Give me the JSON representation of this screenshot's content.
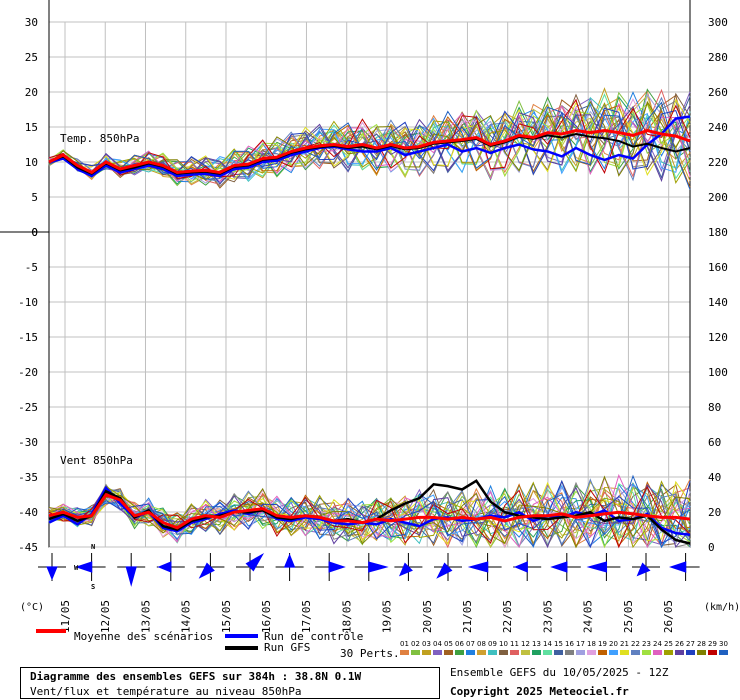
{
  "chart_data": {
    "type": "line",
    "days": [
      "11/05",
      "12/05",
      "13/05",
      "14/05",
      "15/05",
      "16/05",
      "17/05",
      "18/05",
      "19/05",
      "20/05",
      "21/05",
      "22/05",
      "23/05",
      "24/05",
      "25/05",
      "26/05"
    ],
    "left_unit": "(°C)",
    "right_unit": "(km/h)",
    "temp_panel": {
      "label": "Temp. 850hPa",
      "left_ticks": [
        "30",
        "25",
        "20",
        "15",
        "10",
        "5",
        "0"
      ],
      "right_ticks": [
        "300",
        "280",
        "260",
        "240",
        "220",
        "200"
      ],
      "ylim": [
        0,
        30
      ],
      "mean": [
        10,
        11,
        9.5,
        8.5,
        10,
        9,
        9.5,
        10,
        9.5,
        8.5,
        8.7,
        8.8,
        8.5,
        9.5,
        9.7,
        10.5,
        10.7,
        11.5,
        12,
        12.3,
        12.5,
        12.2,
        12.5,
        12,
        12.5,
        12,
        12.2,
        12.8,
        13,
        13.2,
        13.5,
        12.5,
        13,
        13.8,
        13.5,
        14.2,
        14,
        14.5,
        14.2,
        14.5,
        14.2,
        13.8,
        14.5,
        14,
        13.7,
        13
      ],
      "control": [
        10,
        10.5,
        9,
        8,
        9.5,
        8.5,
        9,
        9.5,
        9,
        8,
        8.2,
        8.3,
        8,
        9,
        9.2,
        10,
        10.2,
        11,
        11.5,
        12,
        12.2,
        11.8,
        11.5,
        11.5,
        12,
        11,
        11.5,
        12,
        12.5,
        11.5,
        12,
        11.3,
        12,
        12.5,
        11.8,
        11.5,
        10.8,
        12,
        11,
        10.3,
        11,
        10.5,
        12.5,
        14,
        16.2,
        16.5
      ],
      "gfs": [
        10,
        10.8,
        9.2,
        8.3,
        9.8,
        8.8,
        9.2,
        9.8,
        9.3,
        8.3,
        8.5,
        8.6,
        8.3,
        9.3,
        9.5,
        10.3,
        10.5,
        11.3,
        11.8,
        12.1,
        12.3,
        12,
        12.2,
        11.8,
        12.3,
        11.8,
        12,
        12.6,
        12.8,
        13,
        13.3,
        12.3,
        12.8,
        13.6,
        13.3,
        13.8,
        13.5,
        14,
        13.6,
        13.4,
        13,
        12.2,
        12.6,
        12,
        11.5,
        12
      ]
    },
    "wind_panel": {
      "label": "Vent 850hPa",
      "left_ticks": [
        "0",
        "-5",
        "-10",
        "-15",
        "-20",
        "-25",
        "-30",
        "-35",
        "-40",
        "-45"
      ],
      "right_ticks": [
        "180",
        "160",
        "140",
        "120",
        "100",
        "80",
        "60",
        "40",
        "20",
        "0"
      ],
      "ylim": [
        0,
        180
      ],
      "mean": [
        18,
        20,
        17,
        18,
        30,
        27,
        18,
        20,
        14,
        11,
        16,
        18,
        17,
        20,
        21,
        22,
        18,
        17,
        18,
        17,
        15,
        15,
        14,
        16,
        15,
        16,
        17,
        17,
        16,
        17,
        16,
        17,
        15,
        17,
        18,
        18,
        19,
        17,
        18,
        19,
        20,
        19,
        18,
        17,
        17,
        16
      ],
      "control": [
        14,
        18,
        13,
        19,
        34,
        25,
        17,
        20,
        11,
        9,
        14,
        16,
        19,
        21,
        19,
        22,
        16,
        15,
        17,
        16,
        14,
        13,
        14,
        13,
        16,
        14,
        12,
        16,
        17,
        15,
        16,
        18,
        17,
        20,
        15,
        18,
        17,
        20,
        18,
        21,
        15,
        16,
        19,
        11,
        8,
        7
      ],
      "gfs": [
        16,
        19,
        15,
        18,
        32,
        28,
        17,
        21,
        12,
        10,
        15,
        17,
        18,
        20,
        20,
        21,
        17,
        16,
        18,
        17,
        15,
        16,
        14,
        16,
        21,
        25,
        28,
        36,
        35,
        33,
        38,
        26,
        20,
        18,
        17,
        16,
        17,
        18,
        20,
        15,
        17,
        16,
        18,
        10,
        4,
        2
      ]
    },
    "wind_roses": [
      "S",
      "W",
      "S",
      "W",
      "SW",
      "NE",
      "N",
      "E",
      "E",
      "SW",
      "SW",
      "W",
      "W",
      "W",
      "W",
      "SW",
      "W",
      "NW",
      "NW"
    ]
  },
  "legend": {
    "mean_label": "Moyenne des scénarios",
    "control_label": "Run de contrôle",
    "gfs_label": "Run GFS",
    "mean_color": "#ff0000",
    "control_color": "#0000ff",
    "gfs_color": "#000000",
    "perts_label": "30 Perts.",
    "pert_numbers": [
      "01",
      "02",
      "03",
      "04",
      "05",
      "06",
      "07",
      "08",
      "09",
      "10",
      "11",
      "12",
      "13",
      "14",
      "15",
      "16",
      "17",
      "18",
      "19",
      "20",
      "21",
      "22",
      "23",
      "24",
      "25",
      "26",
      "27",
      "28",
      "29",
      "30"
    ],
    "pert_colors": [
      "#e08040",
      "#80c040",
      "#c0a020",
      "#8060c0",
      "#a06020",
      "#40a040",
      "#2080e0",
      "#d0a030",
      "#40c0c0",
      "#806040",
      "#e06060",
      "#c0c040",
      "#20a060",
      "#60e0a0",
      "#4060a0",
      "#808080",
      "#a0a0e0",
      "#e0a0e0",
      "#c06000",
      "#40a0ff",
      "#e0e020",
      "#6080c0",
      "#a0e040",
      "#e060c0",
      "#a0a000",
      "#6040a0",
      "#2040c0",
      "#808000",
      "#c00000",
      "#2060c0"
    ]
  },
  "footer": {
    "title": "Diagramme des ensembles GEFS sur 384h : 38.8N 0.1W",
    "subtitle": "Vent/flux et température au niveau 850hPa",
    "run_info": "Ensemble GEFS du 10/05/2025 - 12Z",
    "copyright": "Copyright 2025 Meteociel.fr"
  }
}
